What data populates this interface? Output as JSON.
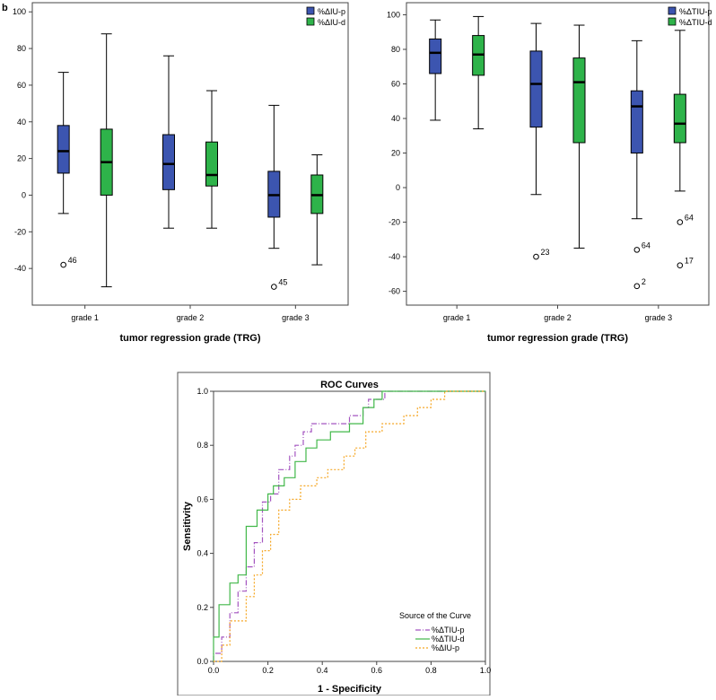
{
  "panel_label": "b",
  "chart_data": [
    {
      "type": "boxplot",
      "categories": [
        "grade 1",
        "grade 2",
        "grade 3"
      ],
      "xlabel": "tumor regression grade (TRG)",
      "ylabel": "",
      "ylim": [
        -60,
        105
      ],
      "yticks": [
        -40,
        -20,
        0,
        20,
        40,
        60,
        80,
        100
      ],
      "series": [
        {
          "name": "%ΔIU-p",
          "color": "#3c55b0",
          "boxes": [
            {
              "min": -10,
              "q1": 12,
              "median": 24,
              "q3": 38,
              "max": 67
            },
            {
              "min": -18,
              "q1": 3,
              "median": 17,
              "q3": 33,
              "max": 76
            },
            {
              "min": -29,
              "q1": -12,
              "median": 0,
              "q3": 13,
              "max": 49
            }
          ]
        },
        {
          "name": "%ΔIU-d",
          "color": "#2eb34a",
          "boxes": [
            {
              "min": -50,
              "q1": 0,
              "median": 18,
              "q3": 36,
              "max": 88
            },
            {
              "min": -18,
              "q1": 5,
              "median": 11,
              "q3": 29,
              "max": 57
            },
            {
              "min": -38,
              "q1": -10,
              "median": 0,
              "q3": 11,
              "max": 22
            }
          ]
        }
      ],
      "outliers": [
        {
          "category": "grade 1",
          "series": "%ΔIU-p",
          "value": -38,
          "label": "46"
        },
        {
          "category": "grade 3",
          "series": "%ΔIU-p",
          "value": -50,
          "label": "45"
        }
      ]
    },
    {
      "type": "boxplot",
      "categories": [
        "grade 1",
        "grade 2",
        "grade 3"
      ],
      "xlabel": "tumor regression grade (TRG)",
      "ylabel": "",
      "ylim": [
        -68,
        107
      ],
      "yticks": [
        -60,
        -40,
        -20,
        0,
        20,
        40,
        60,
        80,
        100
      ],
      "series": [
        {
          "name": "%ΔTIU-p",
          "color": "#3c55b0",
          "boxes": [
            {
              "min": 39,
              "q1": 66,
              "median": 78,
              "q3": 86,
              "max": 97
            },
            {
              "min": -4,
              "q1": 35,
              "median": 60,
              "q3": 79,
              "max": 95
            },
            {
              "min": -18,
              "q1": 20,
              "median": 47,
              "q3": 56,
              "max": 85
            }
          ]
        },
        {
          "name": "%ΔTIU-d",
          "color": "#2eb34a",
          "boxes": [
            {
              "min": 34,
              "q1": 65,
              "median": 77,
              "q3": 88,
              "max": 99
            },
            {
              "min": -35,
              "q1": 26,
              "median": 61,
              "q3": 75,
              "max": 94
            },
            {
              "min": -2,
              "q1": 26,
              "median": 37,
              "q3": 54,
              "max": 91
            }
          ]
        }
      ],
      "outliers": [
        {
          "category": "grade 2",
          "series": "%ΔTIU-p",
          "value": -40,
          "label": "23"
        },
        {
          "category": "grade 3",
          "series": "%ΔTIU-p",
          "value": -36,
          "label": "64"
        },
        {
          "category": "grade 3",
          "series": "%ΔTIU-p",
          "value": -57,
          "label": "2"
        },
        {
          "category": "grade 3",
          "series": "%ΔTIU-d",
          "value": -20,
          "label": "64"
        },
        {
          "category": "grade 3",
          "series": "%ΔTIU-d",
          "value": -45,
          "label": "17"
        }
      ]
    },
    {
      "type": "line",
      "title": "ROC Curves",
      "xlabel": "1 - Specificity",
      "ylabel": "Sensitivity",
      "xlim": [
        0,
        1
      ],
      "ylim": [
        0,
        1
      ],
      "xticks": [
        "0.0",
        "0.2",
        "0.4",
        "0.6",
        "0.8",
        "1.0"
      ],
      "yticks": [
        "0.0",
        "0.2",
        "0.4",
        "0.6",
        "0.8",
        "1.0"
      ],
      "legend_title": "Source of the Curve",
      "legend_position": "bottom-right",
      "series": [
        {
          "name": "%ΔTIU-p",
          "color": "#a455c0",
          "dash": "dashdot",
          "x": [
            0,
            0,
            0.03,
            0.03,
            0.06,
            0.06,
            0.09,
            0.09,
            0.12,
            0.12,
            0.15,
            0.15,
            0.18,
            0.18,
            0.21,
            0.21,
            0.24,
            0.24,
            0.28,
            0.28,
            0.3,
            0.3,
            0.33,
            0.33,
            0.36,
            0.36,
            0.5,
            0.5,
            0.55,
            0.55,
            0.57,
            0.57,
            0.6,
            0.6,
            0.63,
            0.63,
            1
          ],
          "y": [
            0,
            0.03,
            0.03,
            0.09,
            0.09,
            0.18,
            0.18,
            0.26,
            0.26,
            0.35,
            0.35,
            0.44,
            0.44,
            0.59,
            0.59,
            0.62,
            0.62,
            0.71,
            0.71,
            0.76,
            0.76,
            0.8,
            0.8,
            0.85,
            0.85,
            0.88,
            0.88,
            0.91,
            0.91,
            0.94,
            0.94,
            0.97,
            0.97,
            0.97,
            0.97,
            1,
            1
          ]
        },
        {
          "name": "%ΔTIU-d",
          "color": "#42b84a",
          "dash": "solid",
          "x": [
            0,
            0,
            0.02,
            0.02,
            0.06,
            0.06,
            0.09,
            0.09,
            0.12,
            0.12,
            0.16,
            0.16,
            0.2,
            0.2,
            0.22,
            0.22,
            0.26,
            0.26,
            0.3,
            0.3,
            0.34,
            0.34,
            0.38,
            0.38,
            0.43,
            0.43,
            0.5,
            0.5,
            0.55,
            0.55,
            0.59,
            0.59,
            0.62,
            0.62,
            1
          ],
          "y": [
            0,
            0.09,
            0.09,
            0.21,
            0.21,
            0.29,
            0.29,
            0.32,
            0.32,
            0.5,
            0.5,
            0.56,
            0.56,
            0.62,
            0.62,
            0.65,
            0.65,
            0.68,
            0.68,
            0.74,
            0.74,
            0.79,
            0.79,
            0.82,
            0.82,
            0.85,
            0.85,
            0.88,
            0.88,
            0.94,
            0.94,
            0.97,
            0.97,
            1,
            1
          ]
        },
        {
          "name": "%ΔIU-p",
          "color": "#f5a623",
          "dash": "dotted",
          "x": [
            0,
            0.03,
            0.03,
            0.06,
            0.06,
            0.12,
            0.12,
            0.15,
            0.15,
            0.18,
            0.18,
            0.21,
            0.21,
            0.24,
            0.24,
            0.28,
            0.28,
            0.32,
            0.32,
            0.38,
            0.38,
            0.42,
            0.42,
            0.48,
            0.48,
            0.52,
            0.52,
            0.56,
            0.56,
            0.62,
            0.62,
            0.7,
            0.7,
            0.75,
            0.75,
            0.8,
            0.8,
            0.85,
            0.85,
            0.98,
            0.98,
            1
          ],
          "y": [
            0,
            0,
            0.06,
            0.06,
            0.15,
            0.15,
            0.24,
            0.24,
            0.32,
            0.32,
            0.41,
            0.41,
            0.47,
            0.47,
            0.56,
            0.56,
            0.6,
            0.6,
            0.65,
            0.65,
            0.68,
            0.68,
            0.71,
            0.71,
            0.76,
            0.76,
            0.79,
            0.79,
            0.85,
            0.85,
            0.88,
            0.88,
            0.91,
            0.91,
            0.94,
            0.94,
            0.97,
            0.97,
            1,
            1,
            1,
            1
          ]
        }
      ]
    }
  ]
}
